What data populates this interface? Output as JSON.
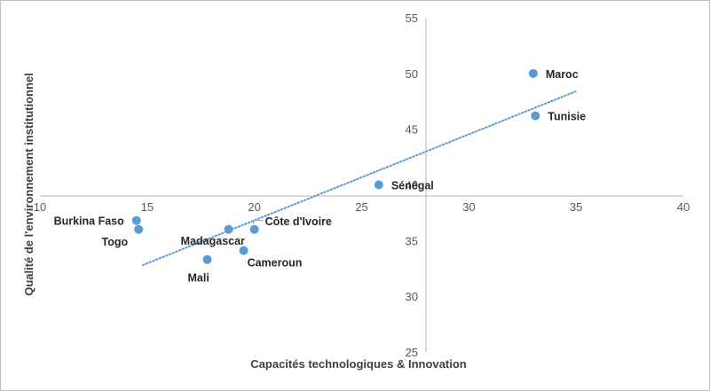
{
  "chart_data": {
    "type": "scatter",
    "title": "",
    "xlabel": "Capacités technologiques & Innovation",
    "ylabel": "Qualité de l'environnement institutionnel",
    "xlim": [
      10,
      40
    ],
    "ylim": [
      25,
      55
    ],
    "x_ticks": [
      10,
      15,
      20,
      25,
      30,
      35,
      40
    ],
    "y_ticks": [
      25,
      30,
      35,
      40,
      45,
      50,
      55
    ],
    "axis_cross": {
      "x": 28,
      "y": 39
    },
    "grid": false,
    "marker_color": "#5B9BD5",
    "trendline": {
      "type": "linear",
      "x_start": 14.8,
      "y_start": 32.8,
      "x_end": 35,
      "y_end": 48.4,
      "color": "#5B9BD5",
      "style": "dotted"
    },
    "points": [
      {
        "name": "Maroc",
        "x": 33,
        "y": 50
      },
      {
        "name": "Tunisie",
        "x": 33.1,
        "y": 46.2
      },
      {
        "name": "Sénégal",
        "x": 25.8,
        "y": 40
      },
      {
        "name": "Côte d'Ivoire",
        "x": 20,
        "y": 36
      },
      {
        "name": "Madagascar",
        "x": 18.8,
        "y": 36
      },
      {
        "name": "Cameroun",
        "x": 19.5,
        "y": 34.1
      },
      {
        "name": "Mali",
        "x": 17.8,
        "y": 33.3
      },
      {
        "name": "Burkina Faso",
        "x": 14.5,
        "y": 36.8
      },
      {
        "name": "Togo",
        "x": 14.6,
        "y": 36
      }
    ]
  }
}
